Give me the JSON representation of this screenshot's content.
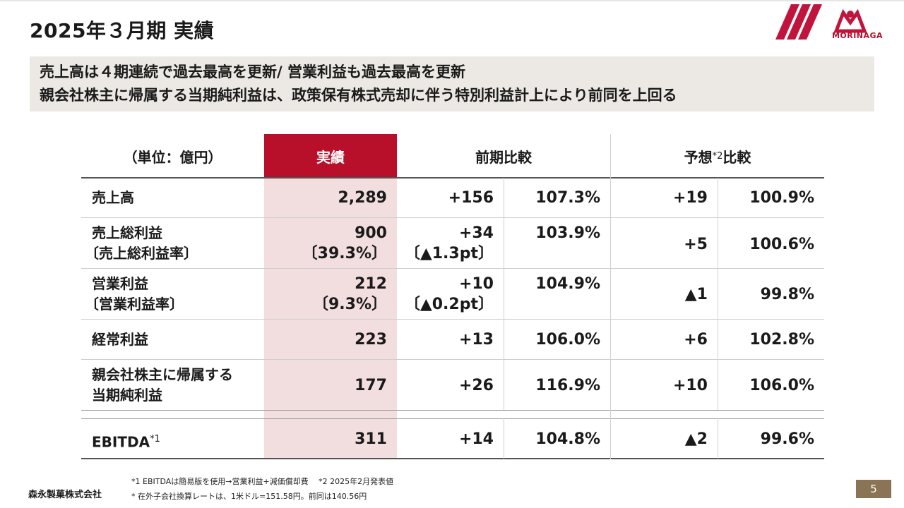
{
  "slide": {
    "title": "2025年３月期 実績",
    "headline_lines": [
      "売上高は４期連続で過去最高を更新/ 営業利益も過去最高を更新",
      "親会社株主に帰属する当期純利益は、政策保有株式売却に伴う特別利益計上により前同を上回る"
    ],
    "logo_text": "MORINAGA",
    "company_name": "森永製菓株式会社",
    "page_number": "5"
  },
  "table": {
    "unit_label": "（単位：億円）",
    "actual_header": "実績",
    "prev_header": "前期比較",
    "forecast_header": "予想",
    "forecast_header_sup": "*2",
    "forecast_header_tail": "比較",
    "rows": [
      {
        "label1": "売上高",
        "label2": "",
        "actual1": "2,289",
        "actual2": "",
        "prev_diff1": "+156",
        "prev_diff2": "",
        "prev_pct": "107.3%",
        "fc_diff": "+19",
        "fc_pct": "100.9%"
      },
      {
        "label1": "売上総利益",
        "label2": "〔売上総利益率〕",
        "actual1": "900",
        "actual2": "〔39.3%〕",
        "prev_diff1": "+34",
        "prev_diff2": "〔▲1.3pt〕",
        "prev_pct": "103.9%",
        "fc_diff": "+5",
        "fc_pct": "100.6%"
      },
      {
        "label1": "営業利益",
        "label2": "〔営業利益率〕",
        "actual1": "212",
        "actual2": "〔9.3%〕",
        "prev_diff1": "+10",
        "prev_diff2": "〔▲0.2pt〕",
        "prev_pct": "104.9%",
        "fc_diff": "▲1",
        "fc_pct": "99.8%"
      },
      {
        "label1": "経常利益",
        "label2": "",
        "actual1": "223",
        "actual2": "",
        "prev_diff1": "+13",
        "prev_diff2": "",
        "prev_pct": "106.0%",
        "fc_diff": "+6",
        "fc_pct": "102.8%"
      },
      {
        "label1": "親会社株主に帰属する",
        "label2": "当期純利益",
        "actual1": "177",
        "actual2": "",
        "prev_diff1": "+26",
        "prev_diff2": "",
        "prev_pct": "116.9%",
        "fc_diff": "+10",
        "fc_pct": "106.0%"
      }
    ],
    "ebitda": {
      "label": "EBITDA",
      "label_sup": "*1",
      "actual": "311",
      "prev_diff": "+14",
      "prev_pct": "104.8%",
      "fc_diff": "▲2",
      "fc_pct": "99.6%"
    }
  },
  "footnotes": {
    "note1": "*1  EBITDAは簡易版を使用→営業利益+減価償却費　 *2  2025年2月発表値",
    "note2": "*  在外子会社換算レートは、1米ドル=151.58円。前同は140.56円"
  },
  "colors": {
    "accent": "#b8102a",
    "actual_bg": "#f2dedf",
    "headline_bg": "#ece9e4",
    "page_badge": "#8b7355"
  }
}
